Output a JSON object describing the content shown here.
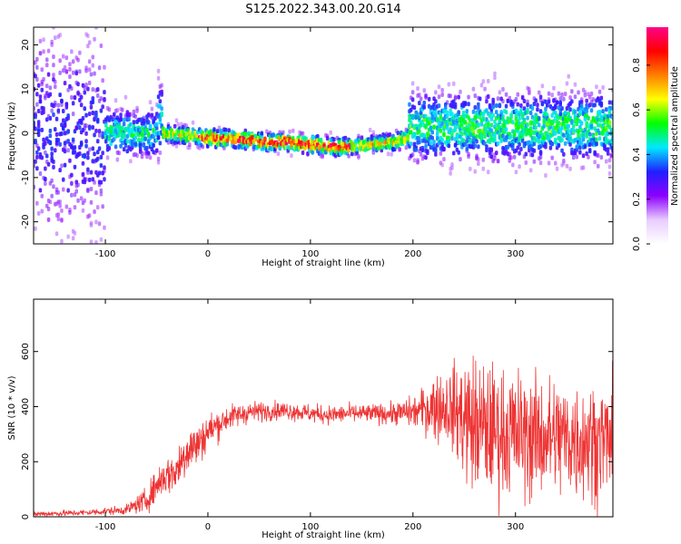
{
  "title": "S125.2022.343.00.20.G14",
  "chart_data": [
    {
      "type": "heatmap",
      "xlabel": "Height of straight line (km)",
      "ylabel": "Frequency (Hz)",
      "xlim": [
        -170,
        395
      ],
      "ylim": [
        -25,
        24
      ],
      "xticks": [
        -100,
        0,
        100,
        200,
        300
      ],
      "yticks": [
        -20,
        -10,
        0,
        10,
        20
      ],
      "colorbar": {
        "label": "Normalized spectral amplitude",
        "range": [
          0.0,
          0.97
        ],
        "ticks": [
          0.0,
          0.2,
          0.4,
          0.6,
          0.8
        ],
        "colormap": [
          "#ffffff",
          "#e8ccff",
          "#8c00ff",
          "#2020ff",
          "#00e8ff",
          "#00ff00",
          "#ffff00",
          "#ff8000",
          "#ff0000",
          "#ff0088"
        ]
      },
      "ridge": {
        "x": [
          -45,
          -20,
          0,
          20,
          40,
          60,
          80,
          100,
          120,
          140,
          160,
          180,
          195
        ],
        "y": [
          0,
          -0.5,
          -1,
          -1.2,
          -1.5,
          -2,
          -2,
          -2.5,
          -3,
          -3,
          -2.5,
          -2,
          -1
        ]
      },
      "grid": false,
      "legend": "none"
    },
    {
      "type": "line",
      "xlabel": "Height of straight line (km)",
      "ylabel": "SNR (10 * v/v)",
      "xlim": [
        -170,
        395
      ],
      "ylim": [
        0,
        790
      ],
      "xticks": [
        -100,
        0,
        100,
        200,
        300
      ],
      "yticks": [
        0,
        200,
        400,
        600
      ],
      "color": "#ee3333",
      "series": [
        {
          "x": [
            -170,
            -120,
            -80,
            -60,
            -45,
            -30,
            -20,
            -10,
            0,
            20,
            40,
            60,
            80,
            100,
            120,
            140,
            160,
            180,
            200,
            210,
            220,
            235,
            250,
            260,
            280,
            300,
            320,
            340,
            360,
            380,
            395
          ],
          "y": [
            10,
            15,
            25,
            60,
            140,
            170,
            250,
            260,
            310,
            360,
            380,
            385,
            385,
            375,
            370,
            375,
            375,
            375,
            380,
            390,
            400,
            400,
            360,
            330,
            310,
            300,
            290,
            290,
            280,
            280,
            280
          ],
          "spread": [
            10,
            10,
            15,
            40,
            60,
            70,
            90,
            70,
            60,
            40,
            35,
            30,
            30,
            30,
            30,
            30,
            30,
            35,
            50,
            70,
            110,
            120,
            200,
            230,
            210,
            210,
            200,
            200,
            200,
            190,
            190
          ]
        }
      ],
      "grid": false,
      "legend": "none"
    }
  ]
}
